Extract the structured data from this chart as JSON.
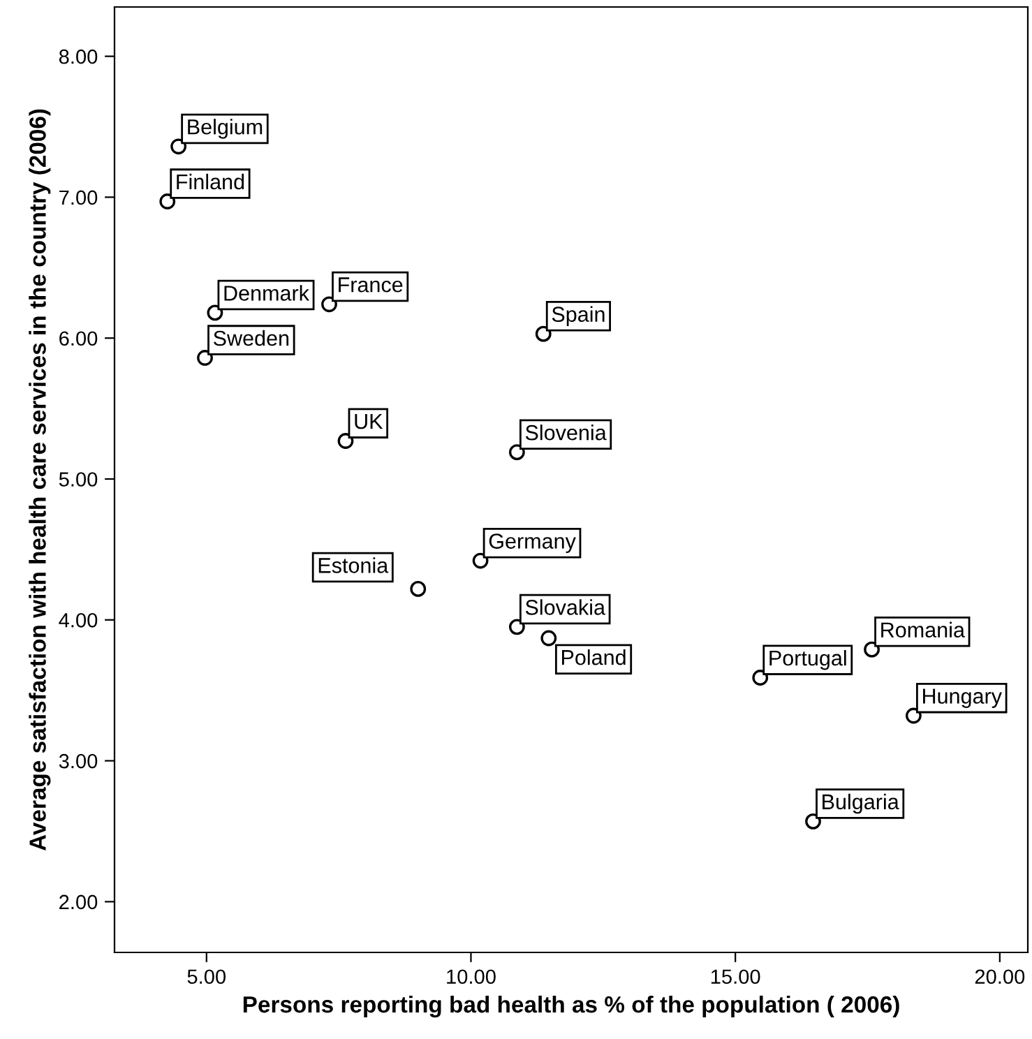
{
  "chart_data": {
    "type": "scatter",
    "xlabel": "Persons reporting bad health as % of the population ( 2006)",
    "ylabel": "Average satisfaction with health care services in the country (2006)",
    "x": [
      4.47,
      4.26,
      5.16,
      7.32,
      4.97,
      11.37,
      7.63,
      10.87,
      10.18,
      9.0,
      10.87,
      11.47,
      17.58,
      15.47,
      18.37,
      16.47
    ],
    "series": [
      {
        "color": "#000000",
        "values": [
          7.36,
          6.97,
          6.18,
          6.24,
          5.86,
          6.03,
          5.27,
          5.19,
          4.42,
          4.22,
          3.95,
          3.87,
          3.79,
          3.59,
          3.32,
          2.57
        ]
      }
    ],
    "marker": "circle",
    "grid": false,
    "xlim": [
      3.26,
      20.53
    ],
    "ylim": [
      1.64,
      8.35
    ],
    "xticks": [
      {
        "value": 5,
        "label": "5.00"
      },
      {
        "value": 10,
        "label": "10.00"
      },
      {
        "value": 15,
        "label": "15.00"
      },
      {
        "value": 20,
        "label": "20.00"
      }
    ],
    "yticks": [
      {
        "value": 2,
        "label": "2.00"
      },
      {
        "value": 3,
        "label": "3.00"
      },
      {
        "value": 4,
        "label": "4.00"
      },
      {
        "value": 5,
        "label": "5.00"
      },
      {
        "value": 6,
        "label": "6.00"
      },
      {
        "value": 7,
        "label": "7.00"
      },
      {
        "value": 8,
        "label": "8.00"
      }
    ],
    "annotations": [
      {
        "text": "Belgium",
        "x": 4.47,
        "y": 7.36
      },
      {
        "text": "Finland",
        "x": 4.26,
        "y": 6.97
      },
      {
        "text": "Denmark",
        "x": 5.16,
        "y": 6.18
      },
      {
        "text": "France",
        "x": 7.32,
        "y": 6.24
      },
      {
        "text": "Sweden",
        "x": 4.97,
        "y": 5.86
      },
      {
        "text": "Spain",
        "x": 11.37,
        "y": 6.03
      },
      {
        "text": "UK",
        "x": 7.63,
        "y": 5.27
      },
      {
        "text": "Slovenia",
        "x": 10.87,
        "y": 5.19
      },
      {
        "text": "Germany",
        "x": 10.18,
        "y": 4.42
      },
      {
        "text": "Estonia",
        "x": 9.0,
        "y": 4.22
      },
      {
        "text": "Slovakia",
        "x": 10.87,
        "y": 3.95
      },
      {
        "text": "Poland",
        "x": 11.47,
        "y": 3.87
      },
      {
        "text": "Romania",
        "x": 17.58,
        "y": 3.79
      },
      {
        "text": "Portugal",
        "x": 15.47,
        "y": 3.59
      },
      {
        "text": "Hungary",
        "x": 18.37,
        "y": 3.32
      },
      {
        "text": "Bulgaria",
        "x": 16.47,
        "y": 2.57
      }
    ]
  }
}
